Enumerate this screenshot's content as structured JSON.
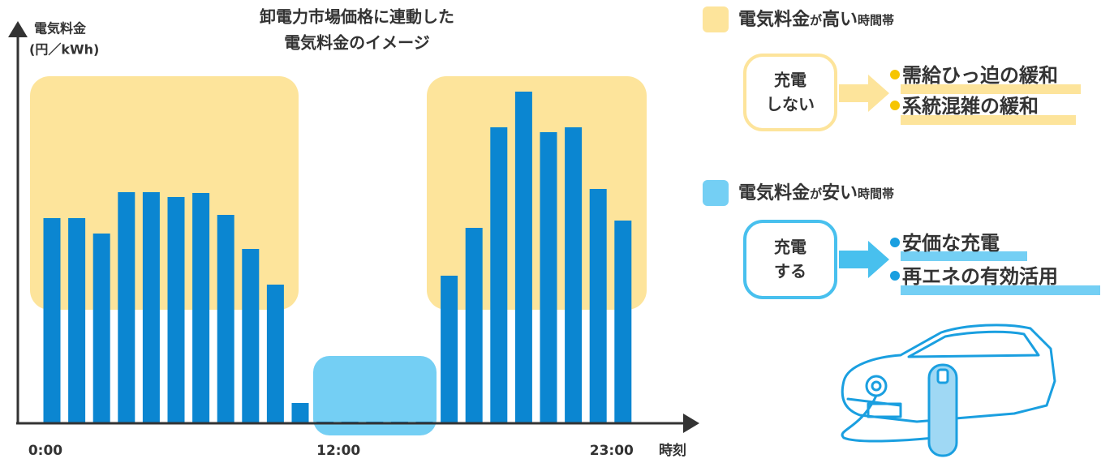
{
  "chart_data": {
    "type": "bar",
    "title": [
      "卸電力市場価格に連動した",
      "電気料金のイメージ"
    ],
    "y_label": [
      "電気料金",
      "(円／kWh)"
    ],
    "x_label": "時刻",
    "categories": [
      "0:00",
      null,
      null,
      null,
      null,
      null,
      null,
      null,
      null,
      null,
      null,
      null,
      "12:00",
      null,
      null,
      null,
      null,
      null,
      null,
      null,
      null,
      null,
      null,
      "23:00"
    ],
    "values": [
      253,
      253,
      234,
      285,
      285,
      279,
      284,
      257,
      215,
      171,
      25,
      2,
      2,
      2,
      2,
      2,
      182,
      241,
      365,
      409,
      359,
      365,
      289,
      250
    ],
    "color": "#0b86d1",
    "ylim": [
      0,
      420
    ]
  },
  "panel": {
    "high": {
      "parts": [
        "電気料金",
        "が",
        "高い",
        "時間帯"
      ],
      "box": [
        "充電",
        "しない"
      ],
      "bullets": [
        "需給ひっ迫の緩和",
        "系統混雑の緩和"
      ]
    },
    "low": {
      "parts": [
        "電気料金",
        "が",
        "安い",
        "時間帯"
      ],
      "box": [
        "充電",
        "する"
      ],
      "bullets": [
        "安価な充電",
        "再エネの有効活用"
      ]
    }
  }
}
